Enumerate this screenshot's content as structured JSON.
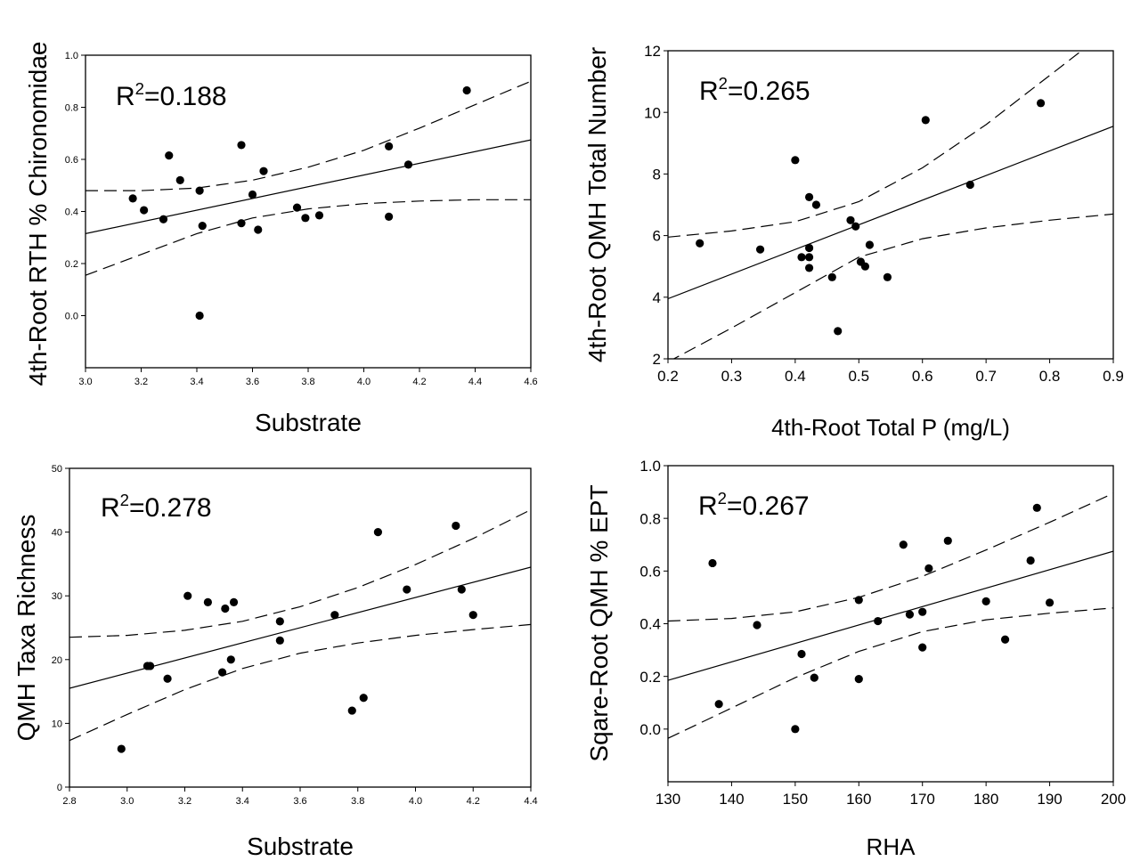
{
  "chart_data": [
    {
      "type": "scatter",
      "xlabel": "Substrate",
      "ylabel": "4th-Root RTH % Chironomidae",
      "annotation": {
        "prefix": "R",
        "sup": "2",
        "suffix": "=0.188"
      },
      "xlim": [
        3.0,
        4.6
      ],
      "ylim": [
        -0.2,
        1.0
      ],
      "xticks": [
        "3.0",
        "3.2",
        "3.4",
        "3.6",
        "3.8",
        "4.0",
        "4.2",
        "4.4",
        "4.6"
      ],
      "yticks": [
        "0.0",
        "0.2",
        "0.4",
        "0.6",
        "0.8",
        "1.0"
      ],
      "points": [
        [
          3.17,
          0.45
        ],
        [
          3.21,
          0.405
        ],
        [
          3.28,
          0.37
        ],
        [
          3.3,
          0.615
        ],
        [
          3.34,
          0.52
        ],
        [
          3.41,
          0.48
        ],
        [
          3.41,
          0.0
        ],
        [
          3.42,
          0.345
        ],
        [
          3.56,
          0.655
        ],
        [
          3.56,
          0.355
        ],
        [
          3.6,
          0.465
        ],
        [
          3.62,
          0.33
        ],
        [
          3.64,
          0.555
        ],
        [
          3.76,
          0.415
        ],
        [
          3.79,
          0.375
        ],
        [
          3.84,
          0.385
        ],
        [
          4.09,
          0.65
        ],
        [
          4.09,
          0.38
        ],
        [
          4.16,
          0.58
        ],
        [
          4.37,
          0.865
        ]
      ],
      "fit": [
        [
          3.0,
          0.315
        ],
        [
          4.6,
          0.675
        ]
      ],
      "ci_upper": [
        [
          3.0,
          0.48
        ],
        [
          3.2,
          0.48
        ],
        [
          3.4,
          0.49
        ],
        [
          3.6,
          0.52
        ],
        [
          3.8,
          0.57
        ],
        [
          4.0,
          0.635
        ],
        [
          4.2,
          0.72
        ],
        [
          4.4,
          0.81
        ],
        [
          4.6,
          0.9
        ]
      ],
      "ci_lower": [
        [
          3.0,
          0.155
        ],
        [
          3.2,
          0.235
        ],
        [
          3.4,
          0.315
        ],
        [
          3.6,
          0.375
        ],
        [
          3.8,
          0.41
        ],
        [
          4.0,
          0.43
        ],
        [
          4.2,
          0.44
        ],
        [
          4.4,
          0.445
        ],
        [
          4.6,
          0.445
        ]
      ]
    },
    {
      "type": "scatter",
      "xlabel": "4th-Root Total P (mg/L)",
      "ylabel": "4th-Root QMH Total Number",
      "annotation": {
        "prefix": "R",
        "sup": "2",
        "suffix": "=0.265"
      },
      "xlim": [
        0.2,
        0.9
      ],
      "ylim": [
        2,
        12
      ],
      "xticks": [
        "0.2",
        "0.3",
        "0.4",
        "0.5",
        "0.6",
        "0.7",
        "0.8",
        "0.9"
      ],
      "yticks": [
        "2",
        "4",
        "6",
        "8",
        "10",
        "12"
      ],
      "points": [
        [
          0.25,
          5.75
        ],
        [
          0.345,
          5.55
        ],
        [
          0.4,
          8.45
        ],
        [
          0.41,
          5.3
        ],
        [
          0.422,
          7.25
        ],
        [
          0.422,
          5.6
        ],
        [
          0.422,
          5.3
        ],
        [
          0.422,
          4.95
        ],
        [
          0.433,
          7.0
        ],
        [
          0.458,
          4.65
        ],
        [
          0.467,
          2.9
        ],
        [
          0.487,
          6.5
        ],
        [
          0.495,
          6.3
        ],
        [
          0.503,
          5.15
        ],
        [
          0.51,
          5.0
        ],
        [
          0.517,
          5.7
        ],
        [
          0.545,
          4.65
        ],
        [
          0.605,
          9.75
        ],
        [
          0.675,
          7.65
        ],
        [
          0.786,
          10.3
        ]
      ],
      "fit": [
        [
          0.2,
          3.95
        ],
        [
          0.9,
          9.55
        ]
      ],
      "ci_upper": [
        [
          0.2,
          5.95
        ],
        [
          0.3,
          6.15
        ],
        [
          0.4,
          6.45
        ],
        [
          0.5,
          7.1
        ],
        [
          0.6,
          8.2
        ],
        [
          0.7,
          9.6
        ],
        [
          0.8,
          11.2
        ],
        [
          0.85,
          12.0
        ]
      ],
      "ci_lower": [
        [
          0.2,
          1.9
        ],
        [
          0.3,
          3.0
        ],
        [
          0.4,
          4.15
        ],
        [
          0.5,
          5.3
        ],
        [
          0.6,
          5.9
        ],
        [
          0.7,
          6.25
        ],
        [
          0.8,
          6.5
        ],
        [
          0.9,
          6.7
        ]
      ]
    },
    {
      "type": "scatter",
      "xlabel": "Substrate",
      "ylabel": "QMH Taxa Richness",
      "annotation": {
        "prefix": "R",
        "sup": "2",
        "suffix": "=0.278"
      },
      "xlim": [
        2.8,
        4.4
      ],
      "ylim": [
        0,
        50
      ],
      "xticks": [
        "2.8",
        "3.0",
        "3.2",
        "3.4",
        "3.6",
        "3.8",
        "4.0",
        "4.2",
        "4.4"
      ],
      "yticks": [
        "0",
        "10",
        "20",
        "30",
        "40",
        "50"
      ],
      "points": [
        [
          2.98,
          6
        ],
        [
          3.07,
          19
        ],
        [
          3.08,
          19
        ],
        [
          3.14,
          17
        ],
        [
          3.21,
          30
        ],
        [
          3.28,
          29
        ],
        [
          3.33,
          18
        ],
        [
          3.34,
          28
        ],
        [
          3.36,
          20
        ],
        [
          3.37,
          29
        ],
        [
          3.53,
          26
        ],
        [
          3.53,
          23
        ],
        [
          3.72,
          27
        ],
        [
          3.78,
          12
        ],
        [
          3.82,
          14
        ],
        [
          3.87,
          40
        ],
        [
          3.97,
          31
        ],
        [
          4.14,
          41
        ],
        [
          4.16,
          31
        ],
        [
          4.2,
          27
        ]
      ],
      "fit": [
        [
          2.8,
          15.5
        ],
        [
          4.4,
          34.5
        ]
      ],
      "ci_upper": [
        [
          2.8,
          23.5
        ],
        [
          3.0,
          23.8
        ],
        [
          3.2,
          24.6
        ],
        [
          3.4,
          26.0
        ],
        [
          3.6,
          28.3
        ],
        [
          3.8,
          31.3
        ],
        [
          4.0,
          34.9
        ],
        [
          4.2,
          39.0
        ],
        [
          4.4,
          43.5
        ]
      ],
      "ci_lower": [
        [
          2.8,
          7.3
        ],
        [
          3.0,
          11.4
        ],
        [
          3.2,
          15.3
        ],
        [
          3.4,
          18.6
        ],
        [
          3.6,
          21.0
        ],
        [
          3.8,
          22.6
        ],
        [
          4.0,
          23.8
        ],
        [
          4.2,
          24.7
        ],
        [
          4.4,
          25.5
        ]
      ]
    },
    {
      "type": "scatter",
      "xlabel": "RHA",
      "ylabel": "Sqare-Root QMH % EPT",
      "annotation": {
        "prefix": "R",
        "sup": "2",
        "suffix": "=0.267"
      },
      "xlim": [
        130,
        200
      ],
      "ylim": [
        -0.2,
        1.0
      ],
      "xticks": [
        "130",
        "140",
        "150",
        "160",
        "170",
        "180",
        "190",
        "200"
      ],
      "yticks": [
        "0.0",
        "0.2",
        "0.4",
        "0.6",
        "0.8",
        "1.0"
      ],
      "points": [
        [
          137,
          0.63
        ],
        [
          138,
          0.095
        ],
        [
          144,
          0.395
        ],
        [
          150,
          0.0
        ],
        [
          151,
          0.285
        ],
        [
          153,
          0.195
        ],
        [
          160,
          0.49
        ],
        [
          160,
          0.19
        ],
        [
          163,
          0.41
        ],
        [
          167,
          0.7
        ],
        [
          168,
          0.435
        ],
        [
          170,
          0.445
        ],
        [
          170,
          0.31
        ],
        [
          171,
          0.61
        ],
        [
          174,
          0.715
        ],
        [
          180,
          0.485
        ],
        [
          183,
          0.34
        ],
        [
          187,
          0.64
        ],
        [
          188,
          0.84
        ],
        [
          190,
          0.48
        ]
      ],
      "fit": [
        [
          130,
          0.185
        ],
        [
          200,
          0.675
        ]
      ],
      "ci_upper": [
        [
          130,
          0.41
        ],
        [
          140,
          0.42
        ],
        [
          150,
          0.445
        ],
        [
          160,
          0.5
        ],
        [
          170,
          0.58
        ],
        [
          180,
          0.68
        ],
        [
          190,
          0.785
        ],
        [
          200,
          0.895
        ]
      ],
      "ci_lower": [
        [
          130,
          -0.035
        ],
        [
          140,
          0.08
        ],
        [
          150,
          0.195
        ],
        [
          160,
          0.295
        ],
        [
          170,
          0.37
        ],
        [
          180,
          0.415
        ],
        [
          190,
          0.44
        ],
        [
          200,
          0.46
        ]
      ]
    }
  ]
}
